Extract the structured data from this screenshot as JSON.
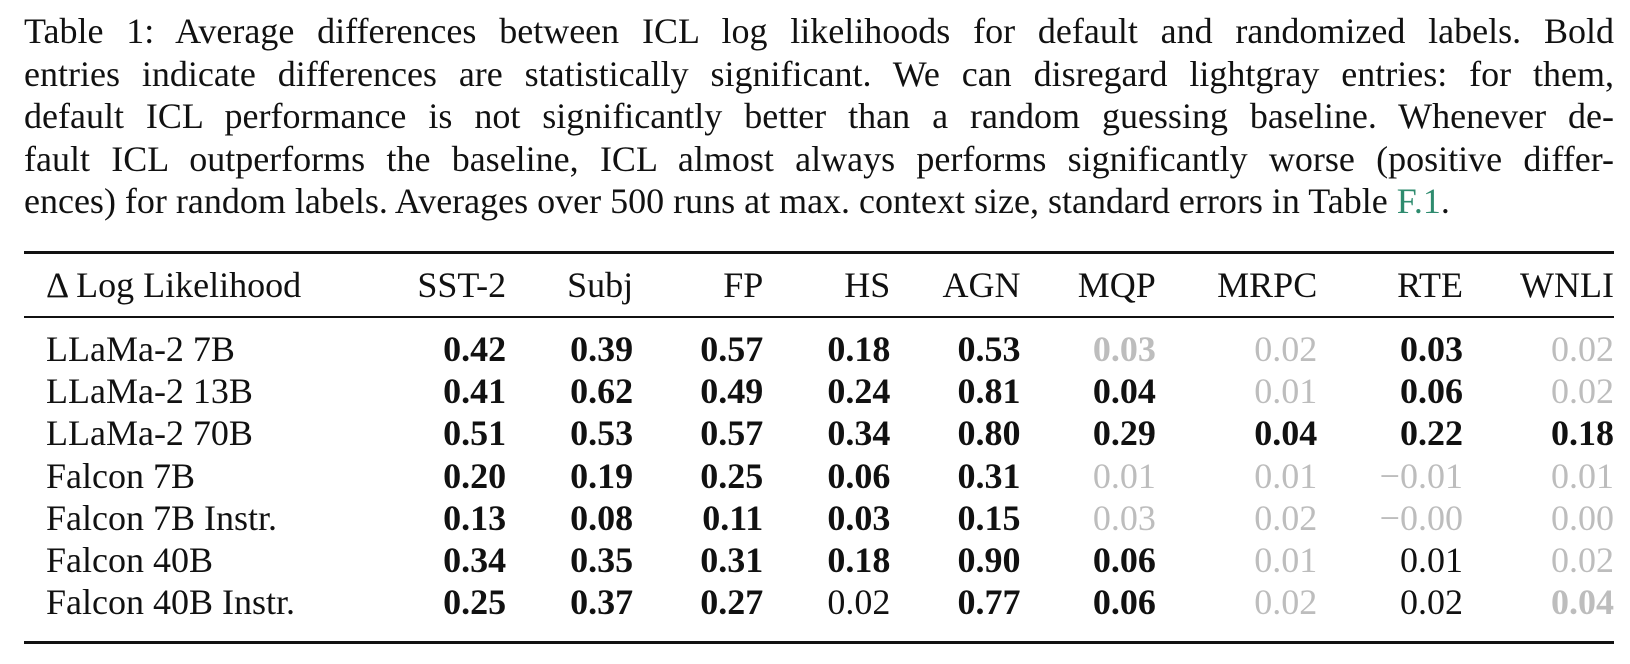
{
  "caption": {
    "lines": [
      "Table 1: Average differences between ICL log likelihoods for default and randomized labels. Bold",
      "entries indicate differences are statistically significant. We can disregard lightgray entries: for them,",
      "default ICL performance is not significantly better than a random guessing baseline. Whenever de-",
      "fault ICL outperforms the baseline, ICL almost always performs significantly worse (positive differ-",
      "ences) for random labels. Averages over 500 runs at max. context size, standard errors in Table "
    ],
    "ref": "F.1",
    "end": "."
  },
  "table": {
    "headers": [
      "Δ Log Likelihood",
      "SST-2",
      "Subj",
      "FP",
      "HS",
      "AGN",
      "MQP",
      "MRPC",
      "RTE",
      "WNLI"
    ],
    "rows": [
      {
        "model": "LLaMa-2 7B",
        "values": [
          "0.42",
          "0.39",
          "0.57",
          "0.18",
          "0.53",
          "0.03",
          "0.02",
          "0.03",
          "0.02"
        ],
        "styles": [
          "b",
          "b",
          "b",
          "b",
          "b",
          "gb",
          "g",
          "b",
          "g"
        ]
      },
      {
        "model": "LLaMa-2 13B",
        "values": [
          "0.41",
          "0.62",
          "0.49",
          "0.24",
          "0.81",
          "0.04",
          "0.01",
          "0.06",
          "0.02"
        ],
        "styles": [
          "b",
          "b",
          "b",
          "b",
          "b",
          "b",
          "g",
          "b",
          "g"
        ]
      },
      {
        "model": "LLaMa-2 70B",
        "values": [
          "0.51",
          "0.53",
          "0.57",
          "0.34",
          "0.80",
          "0.29",
          "0.04",
          "0.22",
          "0.18"
        ],
        "styles": [
          "b",
          "b",
          "b",
          "b",
          "b",
          "b",
          "b",
          "b",
          "b"
        ]
      },
      {
        "model": "Falcon 7B",
        "values": [
          "0.20",
          "0.19",
          "0.25",
          "0.06",
          "0.31",
          "0.01",
          "0.01",
          "−0.01",
          "0.01"
        ],
        "styles": [
          "b",
          "b",
          "b",
          "b",
          "b",
          "g",
          "g",
          "g",
          "g"
        ]
      },
      {
        "model": "Falcon 7B Instr.",
        "values": [
          "0.13",
          "0.08",
          "0.11",
          "0.03",
          "0.15",
          "0.03",
          "0.02",
          "−0.00",
          "0.00"
        ],
        "styles": [
          "b",
          "b",
          "b",
          "b",
          "b",
          "g",
          "g",
          "g",
          "g"
        ]
      },
      {
        "model": "Falcon 40B",
        "values": [
          "0.34",
          "0.35",
          "0.31",
          "0.18",
          "0.90",
          "0.06",
          "0.01",
          "0.01",
          "0.02"
        ],
        "styles": [
          "b",
          "b",
          "b",
          "b",
          "b",
          "b",
          "g",
          "n",
          "g"
        ]
      },
      {
        "model": "Falcon 40B Instr.",
        "values": [
          "0.25",
          "0.37",
          "0.27",
          "0.02",
          "0.77",
          "0.06",
          "0.02",
          "0.02",
          "0.04"
        ],
        "styles": [
          "b",
          "b",
          "b",
          "n",
          "b",
          "b",
          "g",
          "n",
          "gb"
        ]
      }
    ]
  },
  "colors": {
    "text": "#111111",
    "ref_link": "#2e8b6e",
    "lightgray": "#bdbdbd"
  }
}
